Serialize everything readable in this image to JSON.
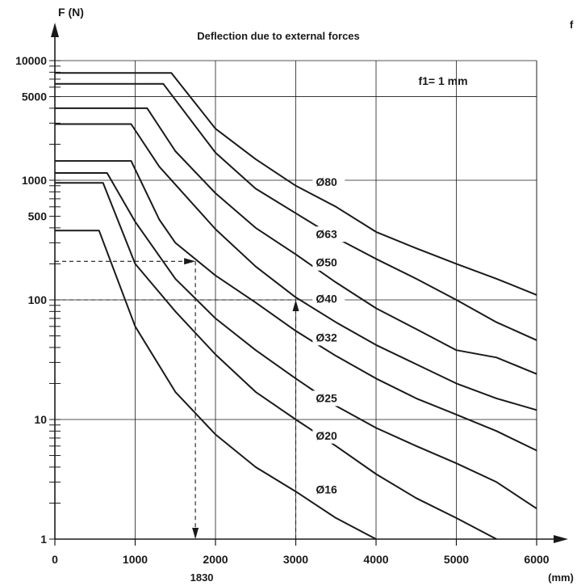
{
  "chart_data": {
    "type": "line",
    "title": "Deflection due to external forces",
    "ylabel": "F (N)",
    "xlabel": "(mm)",
    "corner_label": "f",
    "annotation": "f1= 1 mm",
    "y_scale": "log",
    "ylim": [
      1,
      10000
    ],
    "xlim": [
      0,
      6000
    ],
    "grid": true,
    "x_ticks": [
      "0",
      "1000",
      "2000",
      "3000",
      "4000",
      "5000",
      "6000"
    ],
    "x_tick_values": [
      0,
      1000,
      2000,
      3000,
      4000,
      5000,
      6000
    ],
    "y_ticks": [
      "1",
      "10",
      "100",
      "500",
      "1000",
      "5000",
      "10000"
    ],
    "y_tick_values": [
      1,
      10,
      100,
      500,
      1000,
      5000,
      10000
    ],
    "example": {
      "x_label": "1830",
      "x": 1830,
      "force_value": 210,
      "force_intersect_x": 1750,
      "arrow_down_x": 1750,
      "x2": 3000,
      "force_value2": 100
    },
    "series": [
      {
        "name": "Ø80",
        "points": [
          [
            0,
            7900
          ],
          [
            1450,
            7900
          ],
          [
            2000,
            2700
          ],
          [
            2500,
            1500
          ],
          [
            3000,
            900
          ],
          [
            3500,
            600
          ],
          [
            4000,
            370
          ],
          [
            4500,
            270
          ],
          [
            5000,
            200
          ],
          [
            5500,
            150
          ],
          [
            6000,
            110
          ]
        ]
      },
      {
        "name": "Ø63",
        "points": [
          [
            0,
            6400
          ],
          [
            1350,
            6400
          ],
          [
            2000,
            1700
          ],
          [
            2500,
            850
          ],
          [
            3000,
            530
          ],
          [
            3500,
            330
          ],
          [
            4000,
            220
          ],
          [
            4500,
            150
          ],
          [
            5000,
            100
          ],
          [
            5500,
            65
          ],
          [
            6000,
            46
          ]
        ]
      },
      {
        "name": "Ø50",
        "points": [
          [
            0,
            4000
          ],
          [
            1150,
            4000
          ],
          [
            1500,
            1750
          ],
          [
            2000,
            780
          ],
          [
            2500,
            400
          ],
          [
            3000,
            240
          ],
          [
            3500,
            140
          ],
          [
            4000,
            85
          ],
          [
            4500,
            57
          ],
          [
            5000,
            38
          ],
          [
            5500,
            33
          ],
          [
            6000,
            24
          ]
        ]
      },
      {
        "name": "Ø40",
        "points": [
          [
            0,
            2950
          ],
          [
            950,
            2950
          ],
          [
            1300,
            1300
          ],
          [
            2000,
            390
          ],
          [
            2500,
            190
          ],
          [
            3000,
            105
          ],
          [
            3500,
            65
          ],
          [
            4000,
            42
          ],
          [
            4500,
            29
          ],
          [
            5000,
            20
          ],
          [
            5500,
            15
          ],
          [
            6000,
            12
          ]
        ]
      },
      {
        "name": "Ø32",
        "points": [
          [
            0,
            1450
          ],
          [
            950,
            1450
          ],
          [
            1300,
            470
          ],
          [
            1500,
            300
          ],
          [
            2000,
            160
          ],
          [
            2500,
            95
          ],
          [
            3000,
            55
          ],
          [
            3500,
            34
          ],
          [
            4000,
            22
          ],
          [
            4500,
            15
          ],
          [
            5000,
            11
          ],
          [
            5500,
            8
          ],
          [
            6000,
            5.5
          ]
        ]
      },
      {
        "name": "Ø25",
        "points": [
          [
            0,
            1150
          ],
          [
            650,
            1150
          ],
          [
            1000,
            450
          ],
          [
            1500,
            150
          ],
          [
            2000,
            70
          ],
          [
            2500,
            38
          ],
          [
            3000,
            22
          ],
          [
            3500,
            13
          ],
          [
            4000,
            8.5
          ],
          [
            4500,
            6
          ],
          [
            5000,
            4.3
          ],
          [
            5500,
            3
          ],
          [
            6000,
            1.8
          ]
        ]
      },
      {
        "name": "Ø20",
        "points": [
          [
            0,
            950
          ],
          [
            600,
            950
          ],
          [
            1000,
            200
          ],
          [
            1500,
            80
          ],
          [
            2000,
            35
          ],
          [
            2500,
            17
          ],
          [
            3000,
            10
          ],
          [
            3500,
            6
          ],
          [
            4000,
            3.5
          ],
          [
            4500,
            2.2
          ],
          [
            5000,
            1.5
          ],
          [
            5500,
            1
          ]
        ]
      },
      {
        "name": "Ø16",
        "points": [
          [
            0,
            380
          ],
          [
            550,
            380
          ],
          [
            1000,
            60
          ],
          [
            1500,
            17
          ],
          [
            2000,
            7.5
          ],
          [
            2500,
            4
          ],
          [
            3000,
            2.5
          ],
          [
            3500,
            1.5
          ],
          [
            4000,
            1
          ]
        ]
      }
    ],
    "series_label_positions": [
      {
        "name": "Ø80",
        "x": 3250,
        "y": 900
      },
      {
        "name": "Ø63",
        "x": 3250,
        "y": 330
      },
      {
        "name": "Ø50",
        "x": 3250,
        "y": 190
      },
      {
        "name": "Ø40",
        "x": 3250,
        "y": 95
      },
      {
        "name": "Ø32",
        "x": 3250,
        "y": 45
      },
      {
        "name": "Ø25",
        "x": 3250,
        "y": 14
      },
      {
        "name": "Ø20",
        "x": 3250,
        "y": 6.8
      },
      {
        "name": "Ø16",
        "x": 3250,
        "y": 2.4
      }
    ],
    "colors": {
      "line": "#1a1a1a",
      "grid": "#1a1a1a"
    }
  }
}
